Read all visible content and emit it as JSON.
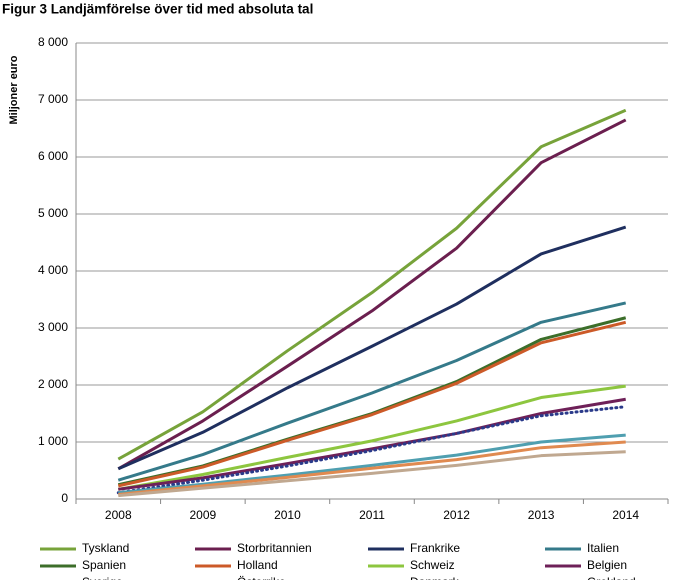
{
  "chart_data": {
    "type": "line",
    "title": "Figur 3 Landjämförelse över tid med absoluta tal",
    "y_label": "Miljoner euro",
    "categories": [
      "2008",
      "2009",
      "2010",
      "2011",
      "2012",
      "2013",
      "2014"
    ],
    "ylim": [
      0,
      8000
    ],
    "yticks": [
      0,
      {
        "value": 1000,
        "label": "1 000"
      },
      {
        "value": 2000,
        "label": "2 000"
      },
      {
        "value": 3000,
        "label": "3 000"
      },
      {
        "value": 4000,
        "label": "4 000"
      },
      {
        "value": 5000,
        "label": "5 000"
      },
      {
        "value": 6000,
        "label": "6 000"
      },
      {
        "value": 7000,
        "label": "7 000"
      },
      {
        "value": 8000,
        "label": "8 000"
      }
    ],
    "grid": true,
    "series": [
      {
        "name": "Tyskland",
        "color": "#77a33a",
        "values": [
          700,
          1530,
          2600,
          3620,
          4750,
          6180,
          6820
        ]
      },
      {
        "name": "Storbritannien",
        "color": "#6b1f4f",
        "values": [
          530,
          1370,
          2330,
          3300,
          4400,
          5900,
          6650
        ]
      },
      {
        "name": "Frankrike",
        "color": "#1f2f5f",
        "values": [
          530,
          1170,
          1950,
          2680,
          3420,
          4300,
          4770
        ]
      },
      {
        "name": "Italien",
        "color": "#357a8a",
        "values": [
          330,
          780,
          1330,
          1860,
          2430,
          3100,
          3440
        ]
      },
      {
        "name": "Spanien",
        "color": "#3c6e2a",
        "values": [
          250,
          580,
          1050,
          1500,
          2060,
          2800,
          3180
        ]
      },
      {
        "name": "Holland",
        "color": "#cc5a28",
        "values": [
          230,
          560,
          1030,
          1480,
          2030,
          2740,
          3100
        ]
      },
      {
        "name": "Schweiz",
        "color": "#8dc63f",
        "values": [
          170,
          430,
          730,
          1020,
          1370,
          1780,
          1980
        ]
      },
      {
        "name": "Belgien",
        "color": "#6e2058",
        "values": [
          170,
          370,
          620,
          880,
          1150,
          1500,
          1750
        ]
      },
      {
        "name": "Sverige",
        "color": "#2a3a8a",
        "style": "dotted",
        "values": [
          110,
          330,
          580,
          850,
          1150,
          1460,
          1620
        ]
      },
      {
        "name": "Österrike",
        "color": "#4f9fb0",
        "values": [
          110,
          260,
          420,
          590,
          770,
          1000,
          1120
        ]
      },
      {
        "name": "Danmark",
        "color": "#e08a50",
        "values": [
          80,
          230,
          380,
          540,
          690,
          900,
          1000
        ]
      },
      {
        "name": "Grekland",
        "color": "#c0a890",
        "values": [
          60,
          190,
          320,
          450,
          590,
          760,
          830
        ]
      }
    ]
  }
}
